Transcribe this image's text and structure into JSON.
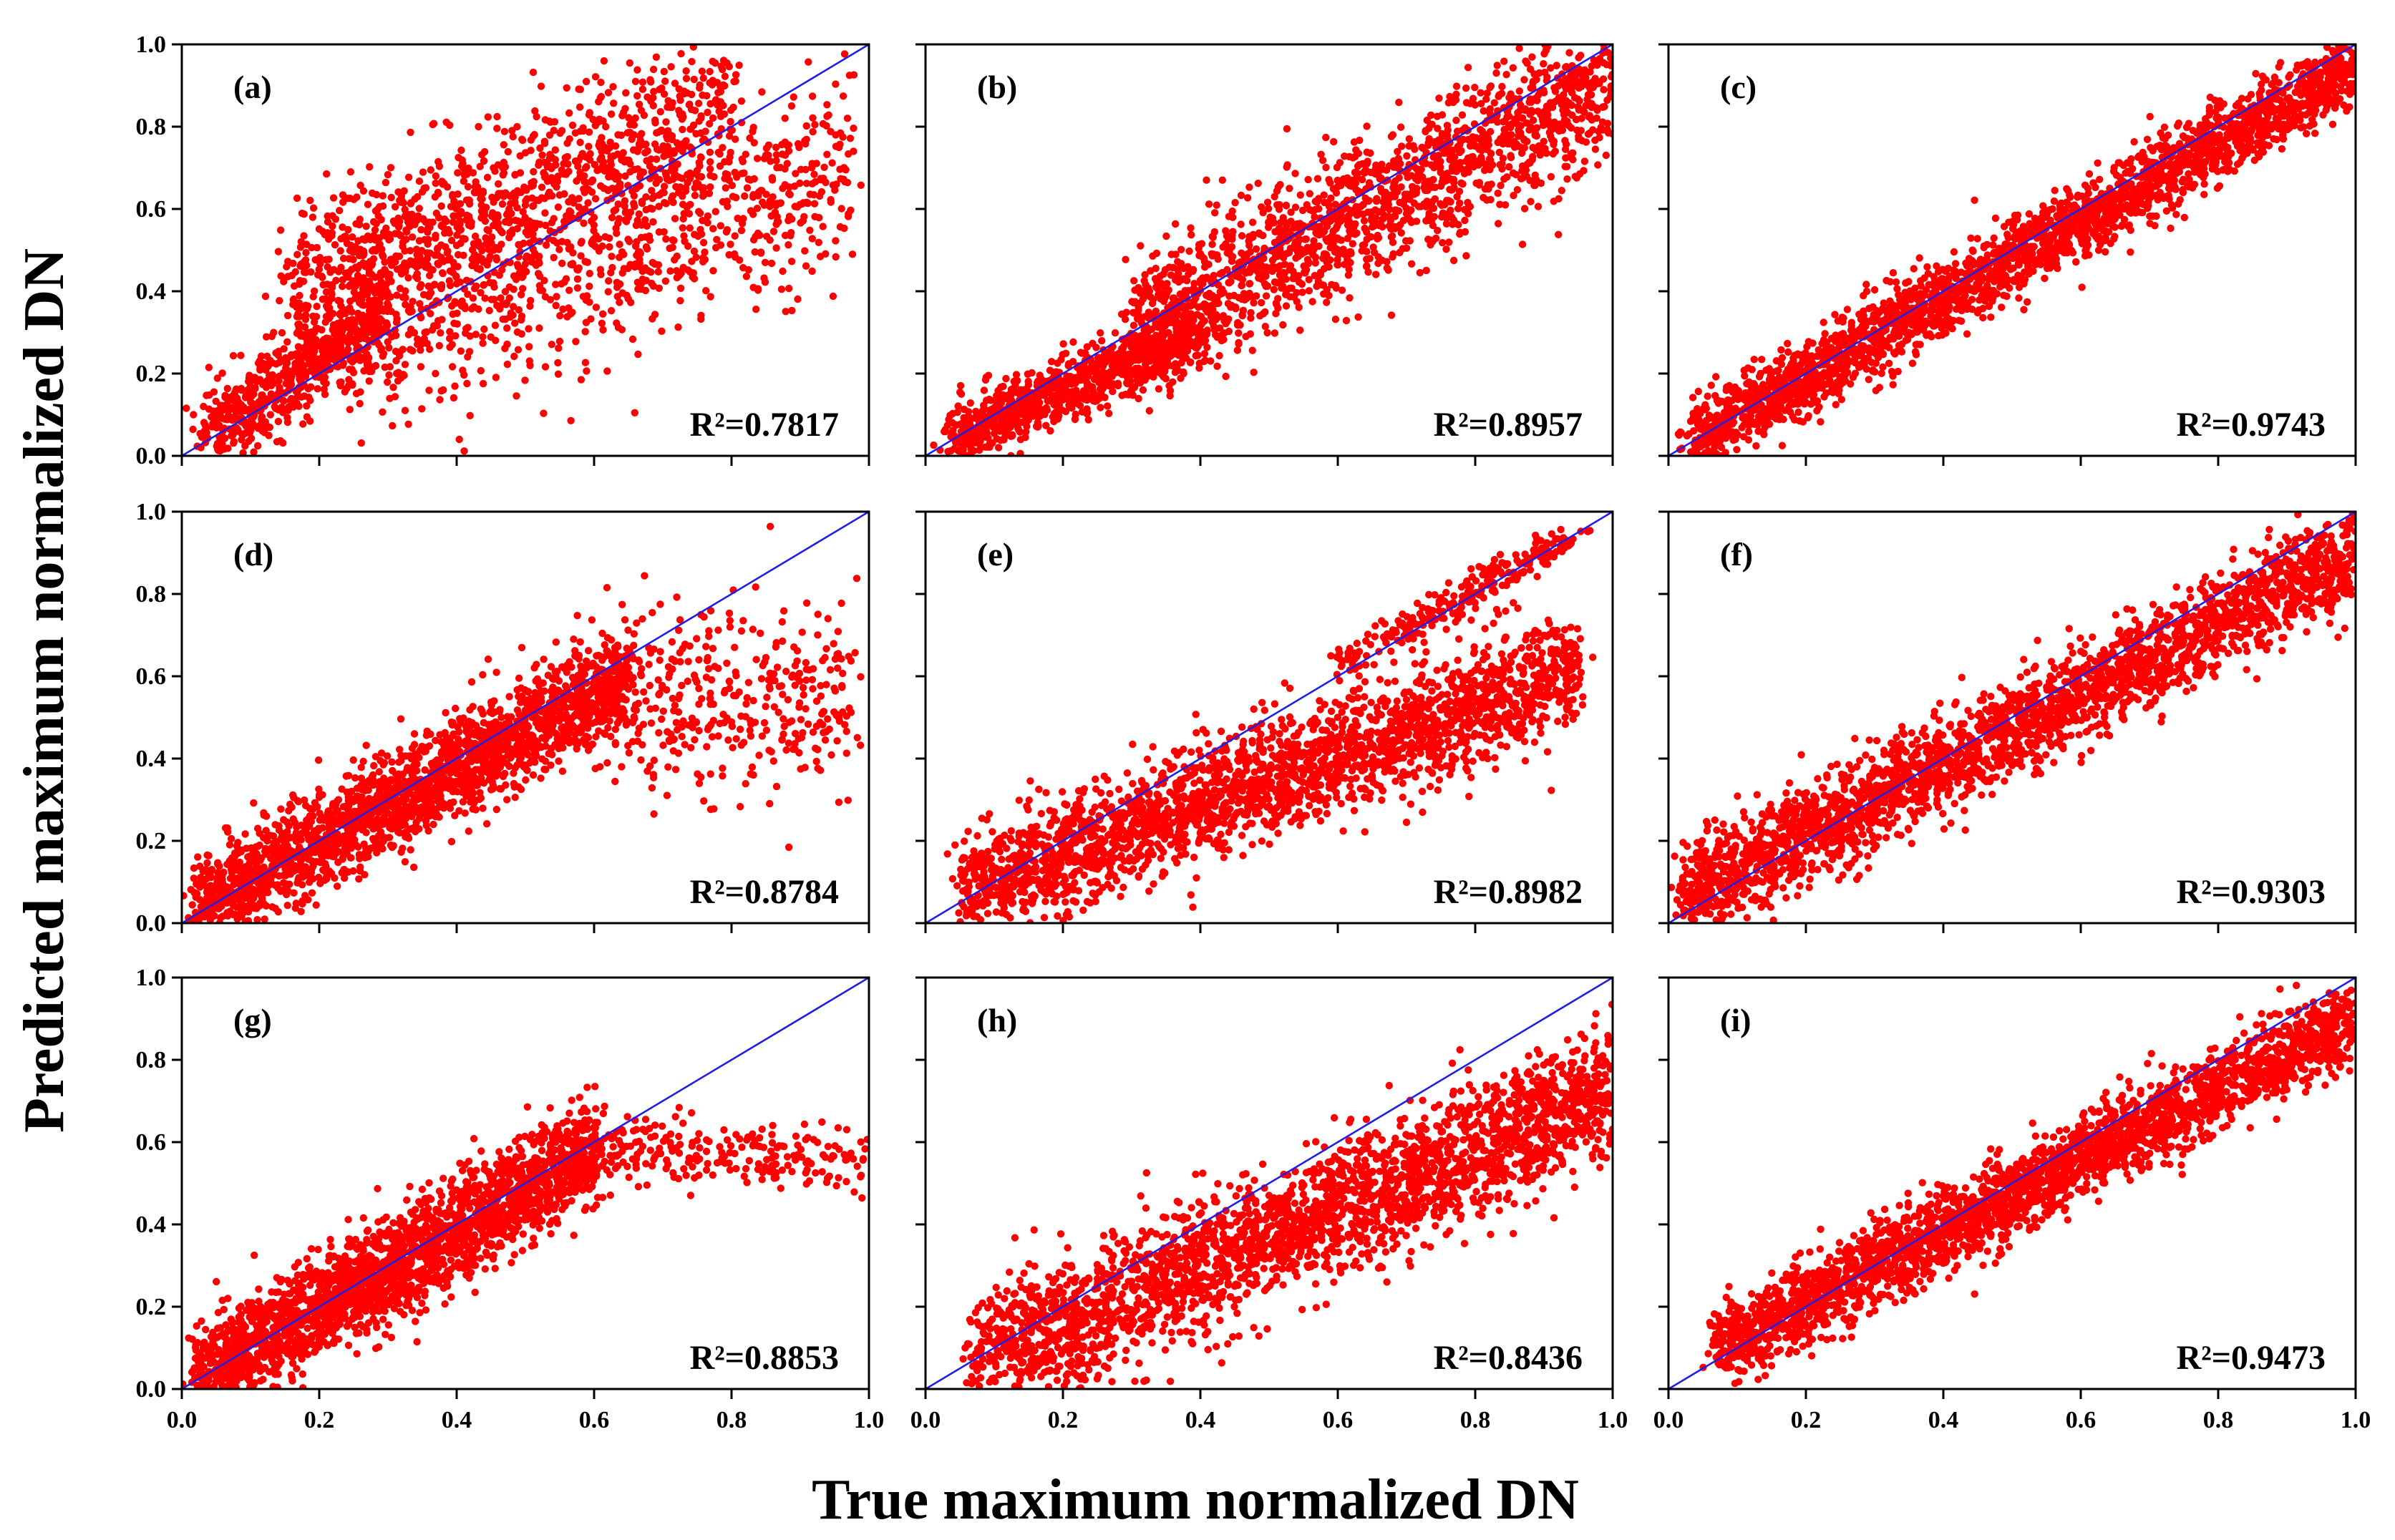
{
  "x_axis_title": "True maximum normalized DN",
  "y_axis_title": "Predicted maximum normalized DN",
  "tick_labels": [
    "0.0",
    "0.2",
    "0.4",
    "0.6",
    "0.8",
    "1.0"
  ],
  "colors": {
    "points": "#ff0000",
    "reference_line": "#1f1fe6",
    "frame": "#000000"
  },
  "chart_data": [
    {
      "type": "scatter",
      "panel": "(a)",
      "r2_label": "R²=0.7817",
      "r2": 0.7817,
      "xlim": [
        0,
        1
      ],
      "ylim": [
        0,
        1
      ],
      "reference_line": "y = x",
      "clusters": [
        {
          "x": [
            0.04,
            0.3
          ],
          "y_center": [
            0.06,
            0.35
          ],
          "spread": 0.06,
          "weight": 0.25
        },
        {
          "x": [
            0.15,
            0.8
          ],
          "y_center": [
            0.4,
            0.85
          ],
          "spread": 0.1,
          "weight": 0.4
        },
        {
          "x": [
            0.25,
            0.98
          ],
          "y_center": [
            0.3,
            0.7
          ],
          "spread": 0.12,
          "weight": 0.35
        }
      ]
    },
    {
      "type": "scatter",
      "panel": "(b)",
      "r2_label": "R²=0.8957",
      "r2": 0.8957,
      "xlim": [
        0,
        1
      ],
      "ylim": [
        0,
        1
      ],
      "reference_line": "y = x",
      "clusters": [
        {
          "x": [
            0.03,
            0.4
          ],
          "y_center": [
            0.04,
            0.3
          ],
          "spread": 0.04,
          "weight": 0.35
        },
        {
          "x": [
            0.3,
            1.0
          ],
          "y_center": [
            0.3,
            0.9
          ],
          "spread": 0.09,
          "weight": 0.65
        }
      ]
    },
    {
      "type": "scatter",
      "panel": "(c)",
      "r2_label": "R²=0.9743",
      "r2": 0.9743,
      "xlim": [
        0,
        1
      ],
      "ylim": [
        0,
        1
      ],
      "reference_line": "y = x",
      "clusters": [
        {
          "x": [
            0.03,
            1.0
          ],
          "y_center": [
            0.03,
            0.95
          ],
          "spread": 0.045,
          "weight": 1.0
        }
      ]
    },
    {
      "type": "scatter",
      "panel": "(d)",
      "r2_label": "R²=0.8784",
      "r2": 0.8784,
      "xlim": [
        0,
        1
      ],
      "ylim": [
        0,
        1
      ],
      "reference_line": "y = x",
      "clusters": [
        {
          "x": [
            0.02,
            0.65
          ],
          "y_center": [
            0.03,
            0.6
          ],
          "spread": 0.06,
          "weight": 0.85
        },
        {
          "x": [
            0.6,
            0.98
          ],
          "y_center": [
            0.55,
            0.55
          ],
          "spread": 0.12,
          "weight": 0.15
        }
      ]
    },
    {
      "type": "scatter",
      "panel": "(e)",
      "r2_label": "R²=0.8982",
      "r2": 0.8982,
      "xlim": [
        0,
        1
      ],
      "ylim": [
        0,
        1
      ],
      "reference_line": "y = x",
      "clusters": [
        {
          "x": [
            0.05,
            0.95
          ],
          "y_center": [
            0.08,
            0.62
          ],
          "spread": 0.07,
          "weight": 0.9
        },
        {
          "x": [
            0.6,
            0.95
          ],
          "y_center": [
            0.62,
            0.95
          ],
          "spread": 0.02,
          "weight": 0.1
        }
      ]
    },
    {
      "type": "scatter",
      "panel": "(f)",
      "r2_label": "R²=0.9303",
      "r2": 0.9303,
      "xlim": [
        0,
        1
      ],
      "ylim": [
        0,
        1
      ],
      "reference_line": "y = x",
      "clusters": [
        {
          "x": [
            0.02,
            1.0
          ],
          "y_center": [
            0.06,
            0.9
          ],
          "spread": 0.06,
          "weight": 1.0
        }
      ]
    },
    {
      "type": "scatter",
      "panel": "(g)",
      "r2_label": "R²=0.8853",
      "r2": 0.8853,
      "xlim": [
        0,
        1
      ],
      "ylim": [
        0,
        1
      ],
      "reference_line": "y = x",
      "clusters": [
        {
          "x": [
            0.02,
            0.6
          ],
          "y_center": [
            0.02,
            0.58
          ],
          "spread": 0.06,
          "weight": 0.9
        },
        {
          "x": [
            0.55,
            1.0
          ],
          "y_center": [
            0.58,
            0.55
          ],
          "spread": 0.04,
          "weight": 0.1
        }
      ]
    },
    {
      "type": "scatter",
      "panel": "(h)",
      "r2_label": "R²=0.8436",
      "r2": 0.8436,
      "xlim": [
        0,
        1
      ],
      "ylim": [
        0,
        1
      ],
      "reference_line": "y = x",
      "clusters": [
        {
          "x": [
            0.07,
            1.0
          ],
          "y_center": [
            0.06,
            0.72
          ],
          "spread": 0.08,
          "weight": 1.0
        }
      ]
    },
    {
      "type": "scatter",
      "panel": "(i)",
      "r2_label": "R²=0.9473",
      "r2": 0.9473,
      "xlim": [
        0,
        1
      ],
      "ylim": [
        0,
        1
      ],
      "reference_line": "y = x",
      "clusters": [
        {
          "x": [
            0.07,
            1.0
          ],
          "y_center": [
            0.1,
            0.9
          ],
          "spread": 0.05,
          "weight": 1.0
        }
      ]
    }
  ]
}
